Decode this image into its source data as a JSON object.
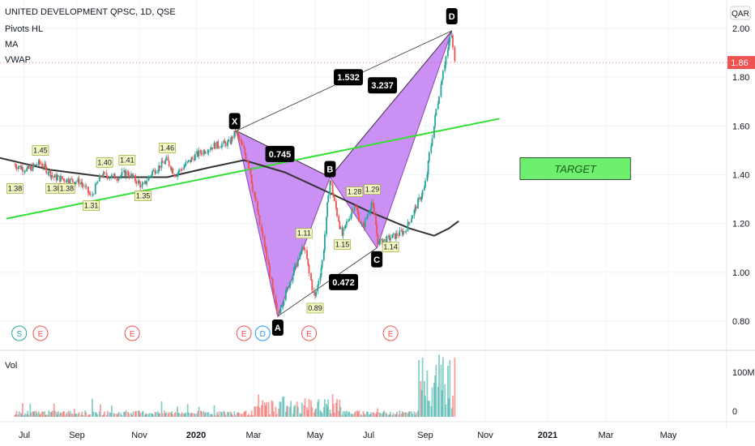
{
  "legend": {
    "title": "UNITED DEVELOPMENT QPSC, 1D, QSE",
    "indicators": [
      "Pivots HL",
      "MA",
      "VWAP"
    ]
  },
  "currency": "QAR",
  "price_label": "1.86",
  "target_label": "TARGET",
  "volume_label": "Vol",
  "colors": {
    "up": "#26a69a",
    "down": "#ef5350",
    "pattern_fill": "#c27df2",
    "pattern_stroke": "#8e44ad",
    "trendline": "#33e033",
    "ma": "#333333",
    "target_fill": "#6ef06e",
    "price_badge": "#ef5350"
  },
  "chart_data": {
    "type": "candlestick",
    "y_ticks": [
      "2.00",
      "1.80",
      "1.60",
      "1.40",
      "1.20",
      "1.00",
      "0.80"
    ],
    "vol_ticks": [
      "100M",
      "0"
    ],
    "x_ticks": [
      "Jul",
      "Sep",
      "Nov",
      "2020",
      "Mar",
      "May",
      "Jul",
      "Sep",
      "Nov",
      "2021",
      "Mar",
      "May"
    ],
    "ylim": [
      0.74,
      2.06
    ],
    "price_path": [
      [
        "2019-06-20",
        1.44
      ],
      [
        "2019-07-05",
        1.42
      ],
      [
        "2019-07-20",
        1.45
      ],
      [
        "2019-08-05",
        1.39
      ],
      [
        "2019-08-20",
        1.38
      ],
      [
        "2019-09-05",
        1.37
      ],
      [
        "2019-09-15",
        1.31
      ],
      [
        "2019-09-25",
        1.4
      ],
      [
        "2019-10-10",
        1.39
      ],
      [
        "2019-10-20",
        1.41
      ],
      [
        "2019-11-05",
        1.35
      ],
      [
        "2019-11-15",
        1.41
      ],
      [
        "2019-12-01",
        1.46
      ],
      [
        "2019-12-10",
        1.4
      ],
      [
        "2020-01-01",
        1.48
      ],
      [
        "2020-01-20",
        1.52
      ],
      [
        "2020-02-05",
        1.53
      ],
      [
        "2020-02-12",
        1.58
      ],
      [
        "2020-02-25",
        1.45
      ],
      [
        "2020-03-05",
        1.25
      ],
      [
        "2020-03-15",
        1.05
      ],
      [
        "2020-03-25",
        0.82
      ],
      [
        "2020-04-05",
        0.95
      ],
      [
        "2020-04-20",
        1.11
      ],
      [
        "2020-05-01",
        0.89
      ],
      [
        "2020-05-10",
        1.05
      ],
      [
        "2020-05-18",
        1.38
      ],
      [
        "2020-06-01",
        1.15
      ],
      [
        "2020-06-15",
        1.28
      ],
      [
        "2020-06-25",
        1.18
      ],
      [
        "2020-07-05",
        1.29
      ],
      [
        "2020-07-12",
        1.12
      ],
      [
        "2020-07-25",
        1.14
      ],
      [
        "2020-08-10",
        1.17
      ],
      [
        "2020-08-20",
        1.25
      ],
      [
        "2020-09-01",
        1.35
      ],
      [
        "2020-09-10",
        1.6
      ],
      [
        "2020-09-20",
        1.84
      ],
      [
        "2020-09-28",
        1.98
      ],
      [
        "2020-10-01",
        1.86
      ]
    ],
    "ma_path": [
      [
        "2019-06-01",
        1.47
      ],
      [
        "2019-08-01",
        1.42
      ],
      [
        "2019-10-01",
        1.39
      ],
      [
        "2019-12-01",
        1.39
      ],
      [
        "2020-01-15",
        1.43
      ],
      [
        "2020-02-20",
        1.46
      ],
      [
        "2020-04-01",
        1.41
      ],
      [
        "2020-05-15",
        1.33
      ],
      [
        "2020-07-01",
        1.25
      ],
      [
        "2020-08-15",
        1.18
      ],
      [
        "2020-09-10",
        1.15
      ],
      [
        "2020-09-25",
        1.18
      ],
      [
        "2020-10-05",
        1.21
      ]
    ],
    "trendline": [
      [
        "2019-06-10",
        1.22
      ],
      [
        "2020-11-15",
        1.63
      ]
    ],
    "xabcd": {
      "points": {
        "X": [
          "2020-02-12",
          1.58
        ],
        "A": [
          "2020-03-25",
          0.82
        ],
        "B": [
          "2020-05-18",
          1.39
        ],
        "C": [
          "2020-07-10",
          1.1
        ],
        "D": [
          "2020-09-28",
          1.99
        ]
      },
      "ratios": {
        "XB": "0.745",
        "AC": "0.472",
        "BD": "3.237",
        "XD": "1.532"
      }
    },
    "pivots": [
      {
        "label": "1.45",
        "date": "2019-07-20",
        "value": 1.45,
        "dir": "high"
      },
      {
        "label": "1.38",
        "date": "2019-06-20",
        "value": 1.38,
        "dir": "low"
      },
      {
        "label": "1.38",
        "date": "2019-08-05",
        "value": 1.38,
        "dir": "low"
      },
      {
        "label": "1.38",
        "date": "2019-08-20",
        "value": 1.38,
        "dir": "low"
      },
      {
        "label": "1.31",
        "date": "2019-09-15",
        "value": 1.31,
        "dir": "low"
      },
      {
        "label": "1.40",
        "date": "2019-09-28",
        "value": 1.4,
        "dir": "high"
      },
      {
        "label": "1.41",
        "date": "2019-10-20",
        "value": 1.41,
        "dir": "high"
      },
      {
        "label": "1.35",
        "date": "2019-11-05",
        "value": 1.35,
        "dir": "low"
      },
      {
        "label": "1.46",
        "date": "2019-12-01",
        "value": 1.46,
        "dir": "high"
      },
      {
        "label": "1.11",
        "date": "2020-04-20",
        "value": 1.11,
        "dir": "high"
      },
      {
        "label": "0.89",
        "date": "2020-05-01",
        "value": 0.89,
        "dir": "low"
      },
      {
        "label": "1.15",
        "date": "2020-06-01",
        "value": 1.15,
        "dir": "low"
      },
      {
        "label": "1.28",
        "date": "2020-06-15",
        "value": 1.28,
        "dir": "high"
      },
      {
        "label": "1.29",
        "date": "2020-07-05",
        "value": 1.29,
        "dir": "high"
      },
      {
        "label": "1.14",
        "date": "2020-07-25",
        "value": 1.14,
        "dir": "low"
      }
    ],
    "target": {
      "date_from": "2020-12-05",
      "date_to": "2021-03-25",
      "top": 1.47,
      "bottom": 1.38
    },
    "events": [
      {
        "label": "S",
        "date": "2019-06-25",
        "color": "#26a69a"
      },
      {
        "label": "E",
        "date": "2019-07-20",
        "color": "#ef5350"
      },
      {
        "label": "E",
        "date": "2019-10-25",
        "color": "#ef5350"
      },
      {
        "label": "E",
        "date": "2020-02-20",
        "color": "#ef5350"
      },
      {
        "label": "D",
        "date": "2020-03-10",
        "color": "#2196f3"
      },
      {
        "label": "E",
        "date": "2020-04-25",
        "color": "#ef5350"
      },
      {
        "label": "E",
        "date": "2020-07-25",
        "color": "#ef5350"
      }
    ],
    "volume_max": 130
  }
}
